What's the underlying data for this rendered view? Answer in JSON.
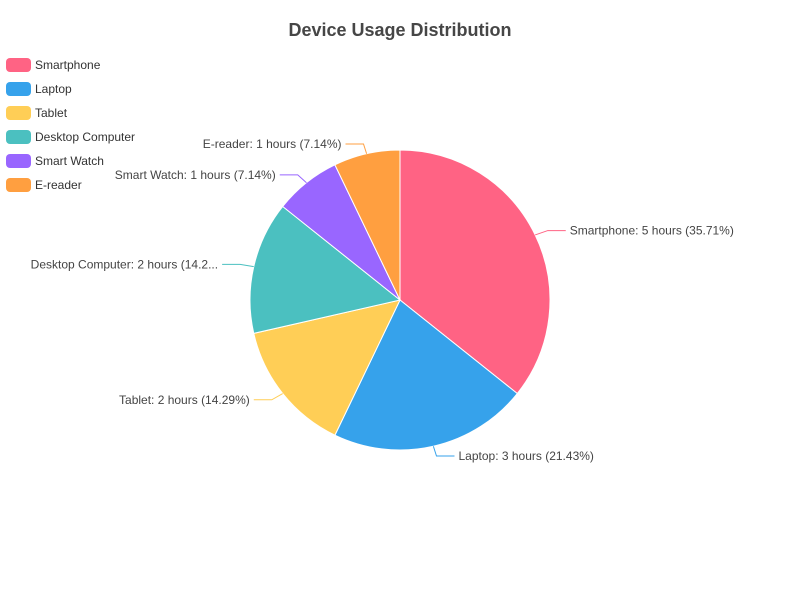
{
  "chart_data": {
    "type": "pie",
    "title": "Device Usage Distribution",
    "unit": "hours",
    "legend_position": "top-left",
    "slices": [
      {
        "name": "Smartphone",
        "value": 5,
        "percent": "35.71%",
        "color": "#ff6384",
        "label": "Smartphone: 5 hours (35.71%)"
      },
      {
        "name": "Laptop",
        "value": 3,
        "percent": "21.43%",
        "color": "#36a2eb",
        "label": "Laptop: 3 hours (21.43%)"
      },
      {
        "name": "Tablet",
        "value": 2,
        "percent": "14.29%",
        "color": "#ffce56",
        "label": "Tablet: 2 hours (14.29%)"
      },
      {
        "name": "Desktop Computer",
        "value": 2,
        "percent": "14.29%",
        "color": "#4bc0c0",
        "label": "Desktop Computer: 2 hours (14.2..."
      },
      {
        "name": "Smart Watch",
        "value": 1,
        "percent": "7.14%",
        "color": "#9966ff",
        "label": "Smart Watch: 1 hours (7.14%)"
      },
      {
        "name": "E-reader",
        "value": 1,
        "percent": "7.14%",
        "color": "#ff9f40",
        "label": "E-reader: 1 hours (7.14%)"
      }
    ]
  }
}
